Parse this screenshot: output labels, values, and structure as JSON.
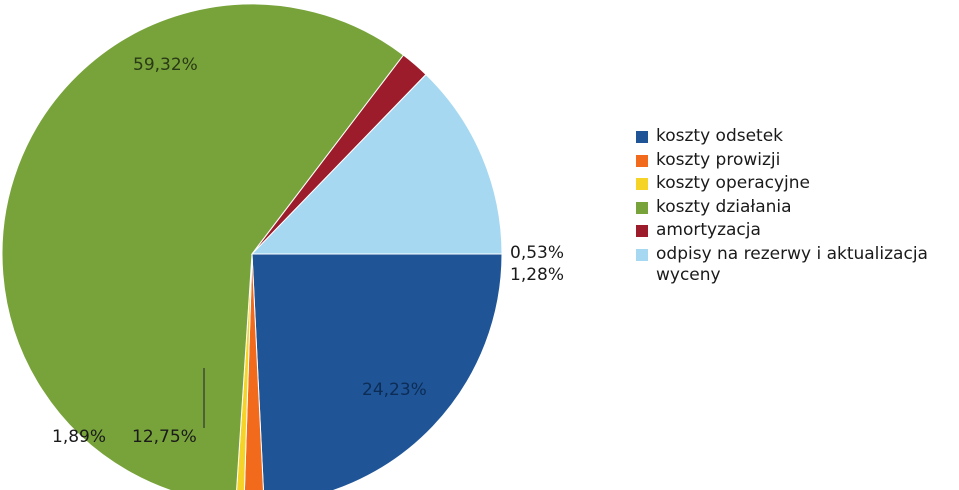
{
  "chart_data": {
    "type": "pie",
    "categories": [
      "koszty odsetek",
      "koszty prowizji",
      "koszty operacyjne",
      "koszty działania",
      "amortyzacja",
      "odpisy na rezerwy i aktualizacja wyceny"
    ],
    "values": [
      24.23,
      1.28,
      0.53,
      59.32,
      1.89,
      12.75
    ],
    "value_labels": [
      "24,23%",
      "1,28%",
      "0,53%",
      "59,32%",
      "1,89%",
      "12,75%"
    ],
    "colors": [
      "#1f5597",
      "#f26a1b",
      "#f5d327",
      "#77a33a",
      "#9c1c2b",
      "#a6d8f2"
    ],
    "legend_position": "right"
  }
}
